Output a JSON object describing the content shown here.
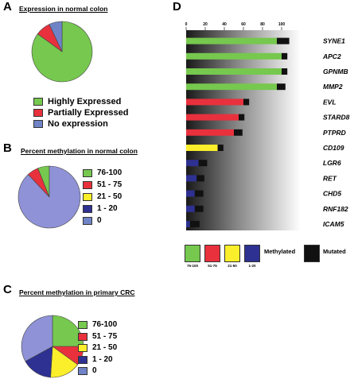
{
  "colors": {
    "green": "#76c84e",
    "red": "#e8313d",
    "yellow": "#fbee2a",
    "navy": "#2e3192",
    "blue": "#6f83c6",
    "lavender": "#8f92d6",
    "black": "#111111"
  },
  "panelA": {
    "letter": "A",
    "title": "Expression in normal colon",
    "legend": [
      "Highly Expressed",
      "Partially Expressed",
      "No expression"
    ]
  },
  "panelB": {
    "letter": "B",
    "title": "Percent methylation in normal colon",
    "legend": [
      "76-100",
      "51 - 75",
      "21 - 50",
      "1 - 20",
      "0"
    ]
  },
  "panelC": {
    "letter": "C",
    "title": "Percent methylation in primary CRC",
    "legend": [
      "76-100",
      "51 - 75",
      "21 - 50",
      "1 - 20",
      "0"
    ]
  },
  "panelD": {
    "letter": "D",
    "legend_methylated": [
      "76-100",
      "51-75",
      "21-50",
      "1-20"
    ],
    "legend_methylated_label": "Methylated",
    "legend_mutated_label": "Mutated"
  },
  "chart_data": [
    {
      "type": "pie",
      "panel": "A",
      "title": "Expression in normal colon",
      "labels": [
        "Highly Expressed",
        "Partially Expressed",
        "No expression"
      ],
      "values": [
        85,
        8,
        7
      ],
      "colors": [
        "#76c84e",
        "#e8313d",
        "#6f83c6"
      ]
    },
    {
      "type": "pie",
      "panel": "B",
      "title": "Percent methylation in normal colon",
      "labels": [
        "76-100",
        "51 - 75",
        "21 - 50",
        "1 - 20",
        "0"
      ],
      "values": [
        6,
        6,
        0,
        0,
        88
      ],
      "colors": [
        "#76c84e",
        "#e8313d",
        "#fbee2a",
        "#2e3192",
        "#8f92d6"
      ]
    },
    {
      "type": "pie",
      "panel": "C",
      "title": "Percent methylation in primary CRC",
      "labels": [
        "76-100",
        "51 - 75",
        "21 - 50",
        "1 - 20",
        "0"
      ],
      "values": [
        25,
        10,
        16,
        16,
        33
      ],
      "colors": [
        "#76c84e",
        "#e8313d",
        "#fbee2a",
        "#2e3192",
        "#8f92d6"
      ]
    },
    {
      "type": "bar",
      "panel": "D",
      "orientation": "horizontal",
      "xlim": [
        0,
        120
      ],
      "xticks": [
        0,
        20,
        40,
        60,
        80,
        100
      ],
      "categories": [
        "SYNE1",
        "APC2",
        "GPNMB",
        "MMP2",
        "EVL",
        "STARD8",
        "PTPRD",
        "CD109",
        "LGR6",
        "RET",
        "CHD5",
        "RNF182",
        "ICAM5"
      ],
      "series": [
        {
          "name": "Methylated",
          "values": [
            95,
            100,
            100,
            95,
            60,
            55,
            50,
            33,
            13,
            11,
            9,
            9,
            4
          ]
        },
        {
          "name": "Mutated",
          "values": [
            13,
            6,
            6,
            9,
            6,
            6,
            9,
            6,
            9,
            8,
            9,
            9,
            10
          ]
        }
      ],
      "methylation_class": [
        "76-100",
        "76-100",
        "76-100",
        "76-100",
        "51-75",
        "51-75",
        "51-75",
        "21-50",
        "1-20",
        "1-20",
        "1-20",
        "1-20",
        "1-20"
      ],
      "class_colors": {
        "76-100": "#76c84e",
        "51-75": "#e8313d",
        "21-50": "#fbee2a",
        "1-20": "#2e3192"
      }
    }
  ]
}
